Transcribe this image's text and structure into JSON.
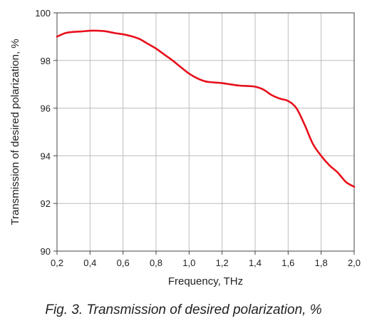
{
  "chart_data": {
    "type": "line",
    "title": "",
    "xlabel": "Frequency, THz",
    "ylabel": "Transmission of desired polarization, %",
    "xlim": [
      0.2,
      2.0
    ],
    "ylim": [
      90,
      100
    ],
    "xticks": [
      0.2,
      0.4,
      0.6,
      0.8,
      1.0,
      1.2,
      1.4,
      1.6,
      1.8,
      2.0
    ],
    "xtick_labels": [
      "0,2",
      "0,4",
      "0,6",
      "0,8",
      "1,0",
      "1,2",
      "1,4",
      "1,6",
      "1,8",
      "2,0"
    ],
    "yticks": [
      90,
      92,
      94,
      96,
      98,
      100
    ],
    "ytick_labels": [
      "90",
      "92",
      "94",
      "96",
      "98",
      "100"
    ],
    "grid": true,
    "legend": "none",
    "series_color": "#e8101c",
    "series": [
      {
        "x": [
          0.2,
          0.25,
          0.3,
          0.35,
          0.4,
          0.45,
          0.5,
          0.55,
          0.6,
          0.65,
          0.7,
          0.75,
          0.8,
          0.85,
          0.9,
          0.95,
          1.0,
          1.05,
          1.1,
          1.15,
          1.2,
          1.25,
          1.3,
          1.35,
          1.4,
          1.45,
          1.5,
          1.55,
          1.6,
          1.65,
          1.7,
          1.75,
          1.8,
          1.85,
          1.9,
          1.95,
          2.0
        ],
        "y": [
          99.0,
          99.15,
          99.2,
          99.22,
          99.25,
          99.25,
          99.22,
          99.15,
          99.1,
          99.02,
          98.9,
          98.7,
          98.5,
          98.25,
          98.0,
          97.72,
          97.45,
          97.25,
          97.12,
          97.08,
          97.05,
          97.0,
          96.95,
          96.93,
          96.9,
          96.78,
          96.55,
          96.4,
          96.3,
          96.0,
          95.3,
          94.5,
          94.0,
          93.6,
          93.3,
          92.9,
          92.7
        ]
      }
    ]
  },
  "caption": "Fig. 3. Transmission of desired polarization, %"
}
